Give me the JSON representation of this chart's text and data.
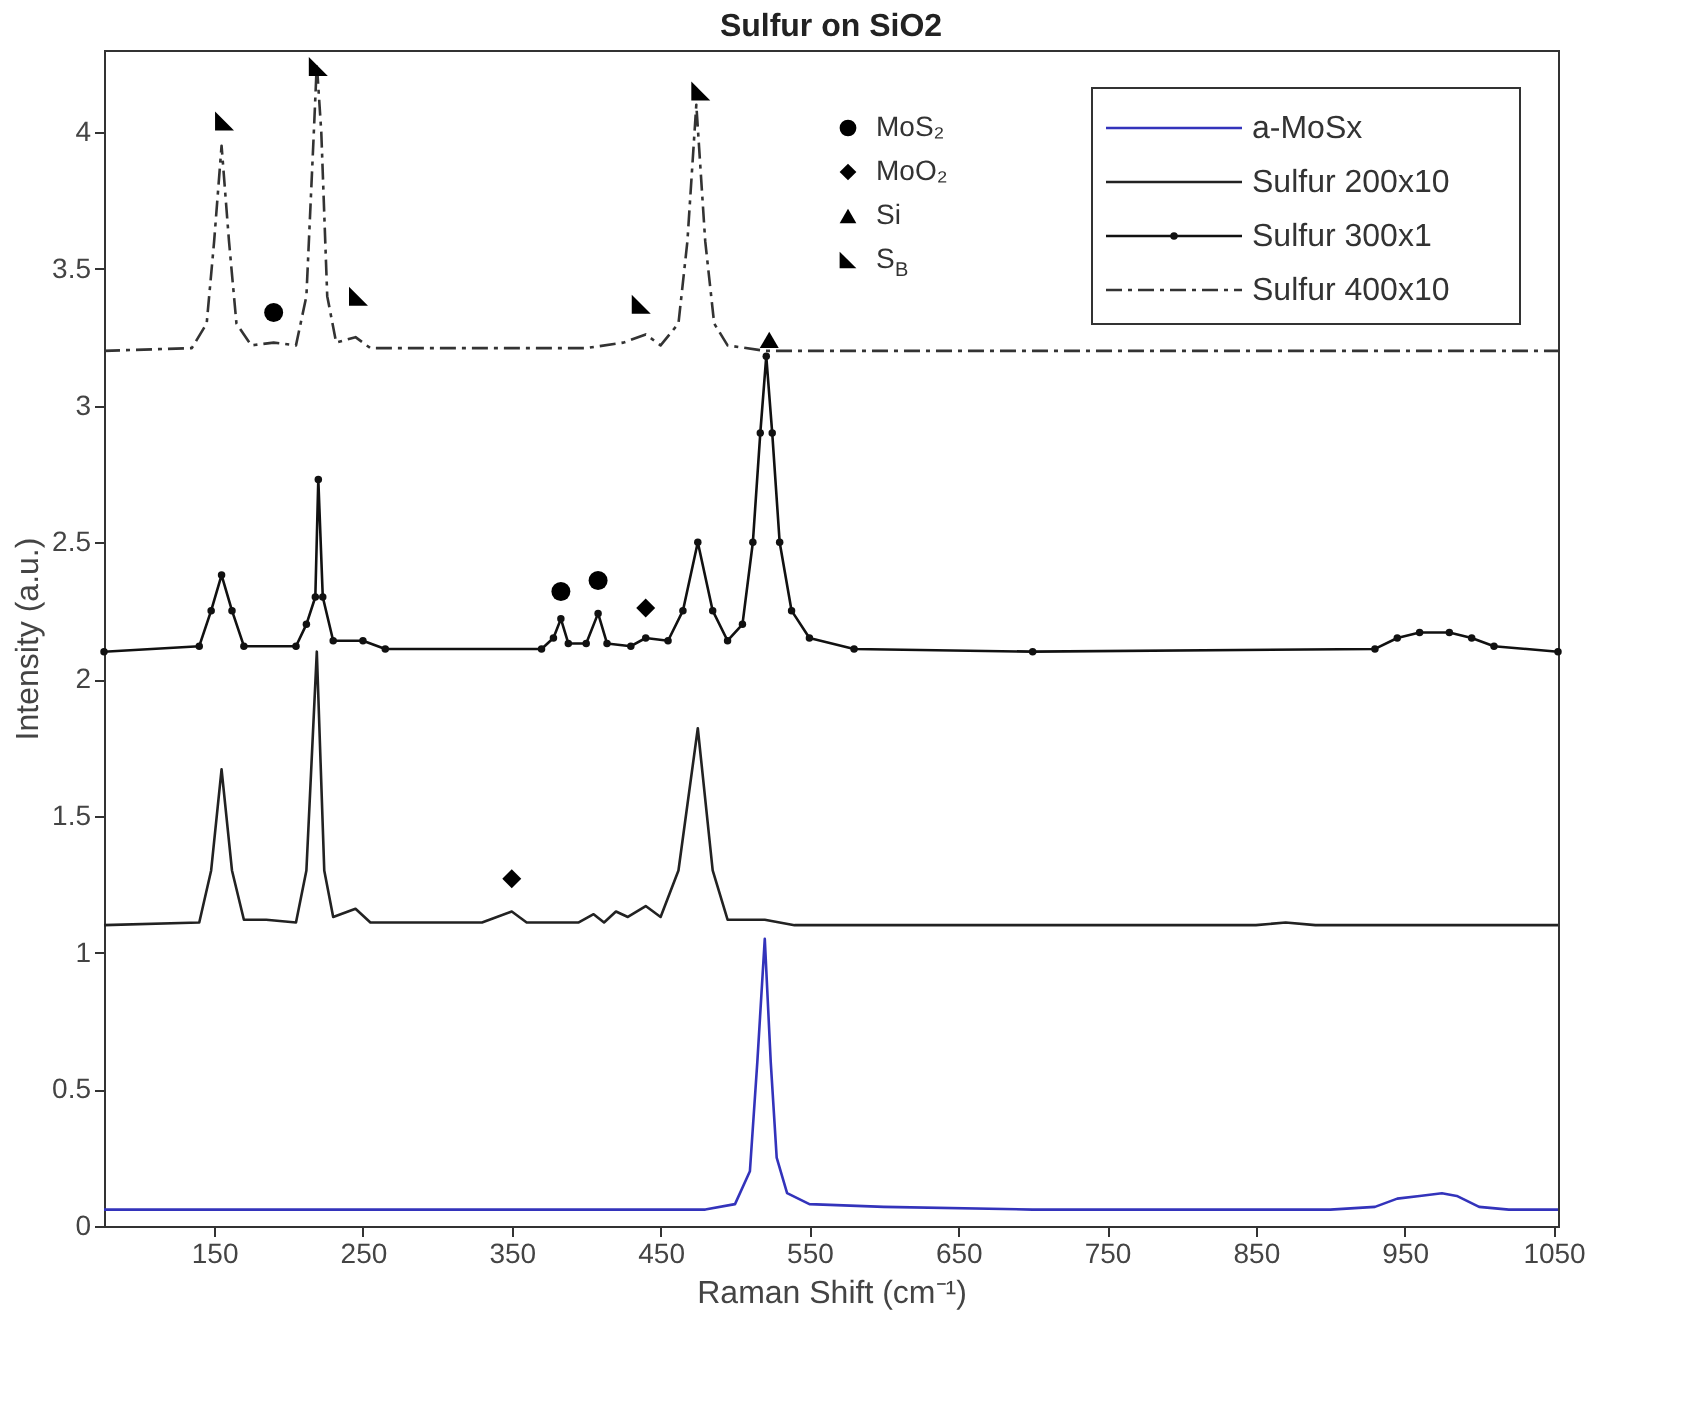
{
  "chart_data": {
    "type": "line",
    "title": "Sulfur on SiO2",
    "xlabel": "Raman Shift (cm⁻¹)",
    "ylabel": "Intensity (a.u.)",
    "xlim": [
      76,
      1053
    ],
    "xticks": [
      150,
      250,
      350,
      450,
      550,
      650,
      750,
      850,
      950,
      1050
    ],
    "ylim": [
      0,
      4.3
    ],
    "yticks": [
      0,
      0.5,
      1,
      1.5,
      2,
      2.5,
      3,
      3.5,
      4
    ],
    "grid": false,
    "legend": "top right",
    "series": [
      {
        "name": "a-MoSx",
        "type": "line",
        "color": "#3333bb",
        "line_style": "solid",
        "marker": "none",
        "x": [
          76,
          300,
          480,
          500,
          510,
          515,
          520,
          524,
          528,
          535,
          550,
          600,
          700,
          900,
          930,
          945,
          960,
          975,
          985,
          1000,
          1020,
          1053
        ],
        "values": [
          0.06,
          0.06,
          0.06,
          0.08,
          0.2,
          0.6,
          1.05,
          0.6,
          0.25,
          0.12,
          0.08,
          0.07,
          0.06,
          0.06,
          0.07,
          0.1,
          0.11,
          0.12,
          0.11,
          0.07,
          0.06,
          0.06
        ]
      },
      {
        "name": "Sulfur 200x10",
        "type": "line",
        "color": "#222222",
        "line_style": "solid",
        "marker": "none",
        "x": [
          76,
          140,
          148,
          155,
          162,
          170,
          185,
          205,
          212,
          219,
          224,
          230,
          245,
          255,
          330,
          350,
          360,
          395,
          405,
          412,
          420,
          428,
          440,
          450,
          462,
          475,
          485,
          495,
          520,
          540,
          850,
          870,
          890,
          1053
        ],
        "values": [
          1.1,
          1.11,
          1.3,
          1.67,
          1.3,
          1.12,
          1.12,
          1.11,
          1.3,
          2.1,
          1.3,
          1.13,
          1.16,
          1.11,
          1.11,
          1.15,
          1.11,
          1.11,
          1.14,
          1.11,
          1.15,
          1.13,
          1.17,
          1.13,
          1.3,
          1.82,
          1.3,
          1.12,
          1.12,
          1.1,
          1.1,
          1.11,
          1.1,
          1.1
        ]
      },
      {
        "name": "Sulfur 300x1",
        "type": "line",
        "color": "#111111",
        "line_style": "solid",
        "marker": "circle",
        "x": [
          76,
          140,
          148,
          155,
          162,
          170,
          205,
          212,
          218,
          220,
          223,
          230,
          250,
          265,
          370,
          378,
          383,
          388,
          400,
          408,
          414,
          430,
          440,
          455,
          465,
          475,
          485,
          495,
          505,
          512,
          517,
          521,
          525,
          530,
          538,
          550,
          580,
          700,
          930,
          945,
          960,
          980,
          995,
          1010,
          1053
        ],
        "values": [
          2.1,
          2.12,
          2.25,
          2.38,
          2.25,
          2.12,
          2.12,
          2.2,
          2.3,
          2.73,
          2.3,
          2.14,
          2.14,
          2.11,
          2.11,
          2.15,
          2.22,
          2.13,
          2.13,
          2.24,
          2.13,
          2.12,
          2.15,
          2.14,
          2.25,
          2.5,
          2.25,
          2.14,
          2.2,
          2.5,
          2.9,
          3.18,
          2.9,
          2.5,
          2.25,
          2.15,
          2.11,
          2.1,
          2.11,
          2.15,
          2.17,
          2.17,
          2.15,
          2.12,
          2.1
        ]
      },
      {
        "name": "Sulfur 400x10",
        "type": "line",
        "color": "#333333",
        "line_style": "dashdot",
        "marker": "none",
        "x": [
          76,
          135,
          145,
          150,
          155,
          160,
          165,
          175,
          190,
          205,
          212,
          217,
          219,
          222,
          226,
          232,
          245,
          255,
          400,
          425,
          440,
          450,
          462,
          468,
          474,
          480,
          486,
          495,
          520,
          1053
        ],
        "values": [
          3.2,
          3.21,
          3.3,
          3.6,
          3.95,
          3.6,
          3.3,
          3.22,
          3.23,
          3.22,
          3.4,
          4.0,
          4.25,
          4.0,
          3.4,
          3.23,
          3.25,
          3.21,
          3.21,
          3.23,
          3.26,
          3.22,
          3.3,
          3.6,
          4.1,
          3.6,
          3.3,
          3.22,
          3.2,
          3.2
        ]
      },
      {
        "name": "MoS₂",
        "type": "scatter",
        "color": "#000000",
        "marker": "circle",
        "x": [
          190,
          383,
          408
        ],
        "values": [
          3.34,
          2.32,
          2.36
        ]
      },
      {
        "name": "MoO₂",
        "type": "scatter",
        "color": "#000000",
        "marker": "diamond",
        "x": [
          350,
          440
        ],
        "values": [
          1.27,
          2.26
        ]
      },
      {
        "name": "Si",
        "type": "scatter",
        "color": "#000000",
        "marker": "triangle",
        "x": [
          523
        ],
        "values": [
          3.24
        ]
      },
      {
        "name": "S$_{B}$",
        "type": "scatter",
        "color": "#000000",
        "marker": "triangle",
        "x": [
          157,
          220,
          247,
          437,
          477
        ],
        "values": [
          4.04,
          4.24,
          3.4,
          3.37,
          4.15
        ]
      }
    ]
  }
}
